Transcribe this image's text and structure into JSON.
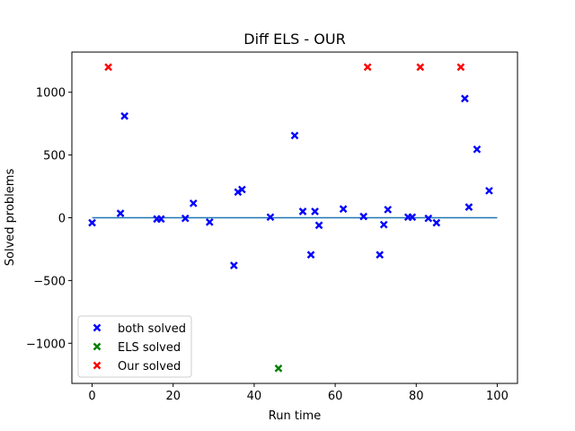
{
  "chart_data": {
    "type": "scatter",
    "title": "Diff ELS - OUR",
    "xlabel": "Run time",
    "ylabel": "Solved problems",
    "xlim": [
      -5,
      105
    ],
    "ylim": [
      -1320,
      1320
    ],
    "xticks": [
      0,
      20,
      40,
      60,
      80,
      100
    ],
    "yticks": [
      -1000,
      -500,
      0,
      500,
      1000
    ],
    "xtick_labels": [
      "0",
      "20",
      "40",
      "60",
      "80",
      "100"
    ],
    "ytick_labels": [
      "−1000",
      "−500",
      "0",
      "500",
      "1000"
    ],
    "grid": false,
    "legend_position": "lower-left",
    "baseline": {
      "y": 0,
      "x_start": 0,
      "x_end": 100,
      "color": "#1f77b4"
    },
    "series": [
      {
        "name": "both solved",
        "color": "#0000ff",
        "marker": "x",
        "points": [
          [
            0,
            -40
          ],
          [
            7,
            35
          ],
          [
            8,
            810
          ],
          [
            16,
            -10
          ],
          [
            17,
            -10
          ],
          [
            23,
            -5
          ],
          [
            25,
            115
          ],
          [
            29,
            -35
          ],
          [
            35,
            -380
          ],
          [
            36,
            205
          ],
          [
            37,
            225
          ],
          [
            44,
            5
          ],
          [
            50,
            655
          ],
          [
            52,
            50
          ],
          [
            54,
            -295
          ],
          [
            55,
            50
          ],
          [
            56,
            -60
          ],
          [
            62,
            70
          ],
          [
            67,
            10
          ],
          [
            71,
            -295
          ],
          [
            72,
            -55
          ],
          [
            73,
            65
          ],
          [
            78,
            5
          ],
          [
            79,
            5
          ],
          [
            83,
            -5
          ],
          [
            85,
            -40
          ],
          [
            92,
            950
          ],
          [
            93,
            85
          ],
          [
            95,
            545
          ],
          [
            98,
            215
          ]
        ]
      },
      {
        "name": "ELS solved",
        "color": "#008000",
        "marker": "x",
        "points": [
          [
            46,
            -1200
          ]
        ]
      },
      {
        "name": "Our solved",
        "color": "#ff0000",
        "marker": "x",
        "points": [
          [
            4,
            1200
          ],
          [
            68,
            1200
          ],
          [
            81,
            1200
          ],
          [
            91,
            1200
          ]
        ]
      }
    ]
  }
}
